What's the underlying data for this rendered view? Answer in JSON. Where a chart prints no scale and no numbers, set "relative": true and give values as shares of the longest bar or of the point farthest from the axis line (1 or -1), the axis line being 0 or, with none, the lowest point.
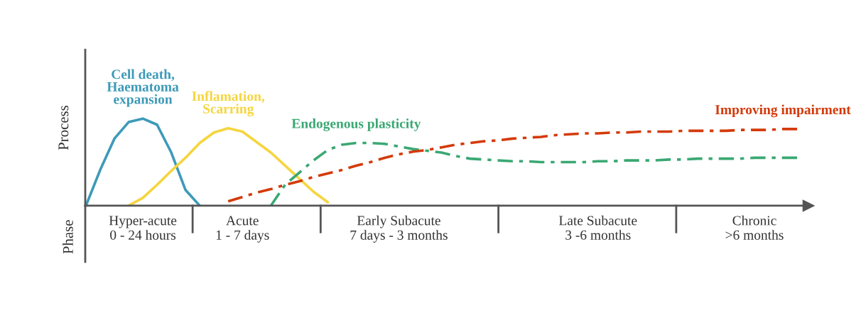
{
  "chart_data": {
    "type": "line",
    "relative": true,
    "ylabel": "Process",
    "annotations": [
      "Phase"
    ],
    "categories": [
      null,
      null,
      null,
      null,
      "Hyper-acute\n0 - 24 hours",
      null,
      null,
      null,
      null,
      null,
      null,
      "Acute\n1 - 7 days",
      null,
      null,
      null,
      null,
      null,
      null,
      null,
      null,
      null,
      null,
      "Early Subacute\n7 days - 3 months",
      null,
      null,
      null,
      null,
      null,
      null,
      null,
      null,
      null,
      null,
      null,
      null,
      null,
      "Late Subacute\n3 -6 months",
      null,
      null,
      null,
      null,
      null,
      null,
      null,
      null,
      null,
      null,
      "Chronic\n>6 months",
      null,
      null,
      null
    ],
    "series": [
      {
        "name": "Cell death,\nHaematoma\nexpansion",
        "color": "#3d9ab8",
        "line_style": "solid",
        "values": [
          0,
          0.41,
          0.77,
          0.96,
          1,
          0.93,
          0.61,
          0.18,
          0,
          null,
          null,
          null,
          null,
          null,
          null,
          null,
          null,
          null,
          null,
          null,
          null,
          null,
          null,
          null,
          null,
          null,
          null,
          null,
          null,
          null,
          null,
          null,
          null,
          null,
          null,
          null,
          null,
          null,
          null,
          null,
          null,
          null,
          null,
          null,
          null,
          null,
          null,
          null,
          null,
          null,
          null
        ]
      },
      {
        "name": "Inflamation,\nScarring",
        "color": "#f5d53f",
        "line_style": "solid",
        "values": [
          null,
          null,
          null,
          0,
          0.09,
          0.24,
          0.4,
          0.55,
          0.72,
          0.84,
          0.89,
          0.85,
          0.73,
          0.61,
          0.46,
          0.31,
          0.16,
          0.04,
          null,
          null,
          null,
          null,
          null,
          null,
          null,
          null,
          null,
          null,
          null,
          null,
          null,
          null,
          null,
          null,
          null,
          null,
          null,
          null,
          null,
          null,
          null,
          null,
          null,
          null,
          null,
          null,
          null,
          null,
          null,
          null,
          null
        ]
      },
      {
        "name": "Endogenous plasticity",
        "color": "#3aa873",
        "line_style": "dashed",
        "values": [
          null,
          null,
          null,
          null,
          null,
          null,
          null,
          null,
          null,
          null,
          null,
          null,
          null,
          0,
          0.24,
          0.38,
          0.52,
          0.64,
          0.7,
          0.72,
          0.72,
          0.71,
          0.68,
          0.65,
          0.63,
          0.61,
          0.57,
          0.54,
          0.53,
          0.52,
          0.51,
          0.51,
          0.5,
          0.5,
          0.5,
          0.5,
          0.51,
          0.51,
          0.52,
          0.52,
          0.52,
          0.53,
          0.53,
          0.54,
          0.54,
          0.54,
          0.54,
          0.55,
          0.55,
          0.55,
          0.55
        ]
      },
      {
        "name": "Improving impairment",
        "color": "#d43a0a",
        "line_style": "dashed",
        "values": [
          null,
          null,
          null,
          null,
          null,
          null,
          null,
          null,
          null,
          null,
          0.05,
          0.1,
          0.15,
          0.19,
          0.24,
          0.28,
          0.33,
          0.37,
          0.41,
          0.46,
          0.5,
          0.55,
          0.59,
          0.62,
          0.64,
          0.67,
          0.7,
          0.72,
          0.74,
          0.75,
          0.77,
          0.78,
          0.79,
          0.81,
          0.82,
          0.83,
          0.83,
          0.84,
          0.84,
          0.85,
          0.85,
          0.85,
          0.86,
          0.86,
          0.86,
          0.86,
          0.87,
          0.87,
          0.87,
          0.88,
          0.88
        ]
      }
    ]
  }
}
